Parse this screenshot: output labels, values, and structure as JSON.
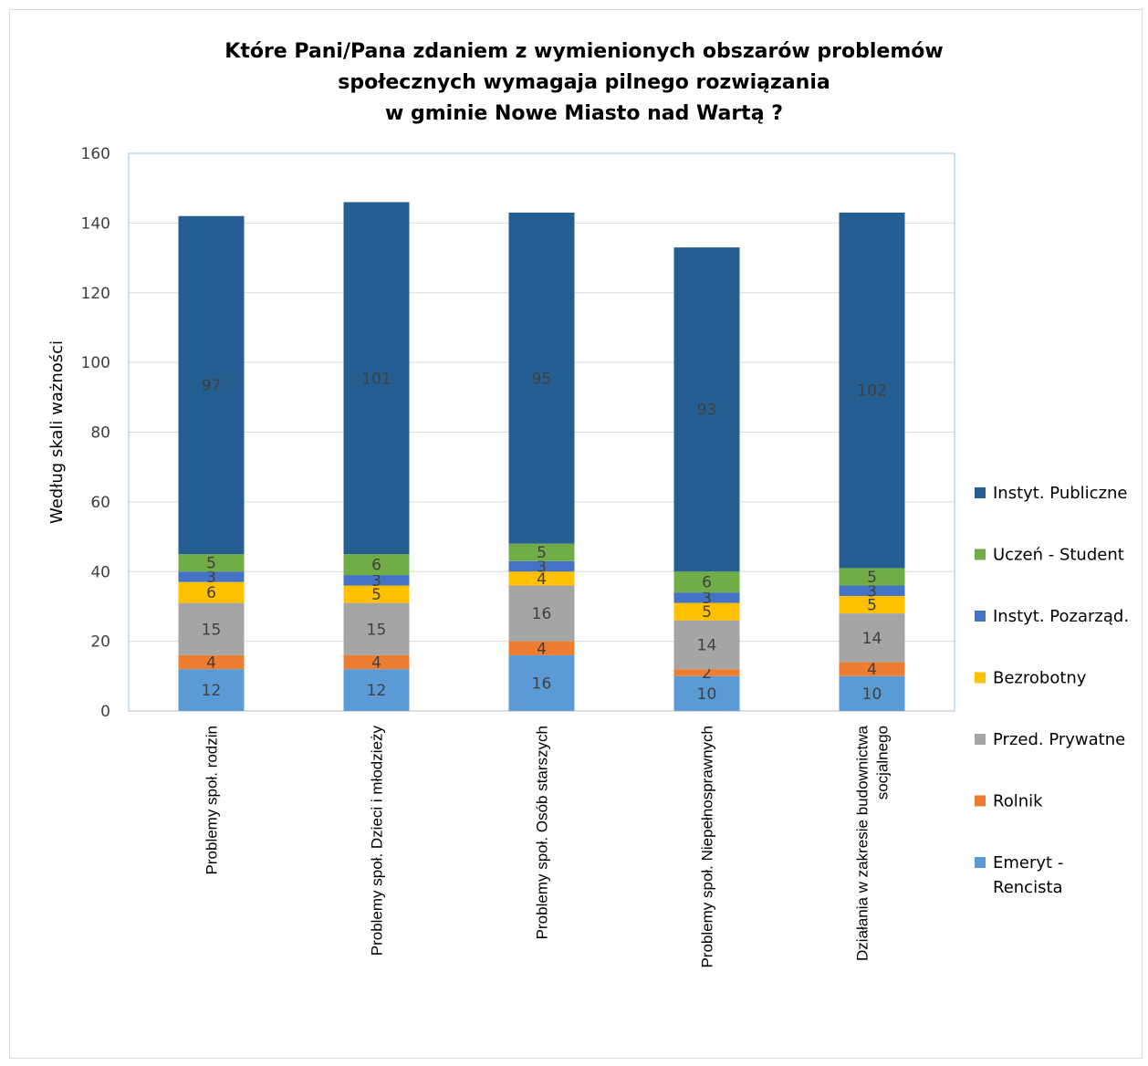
{
  "chart_data": {
    "type": "bar",
    "stacked": true,
    "title": "Które Pani/Pana zdaniem z wymienionych obszarów problemów\nspołecznych wymagaja pilnego rozwiązania\nw gminie Nowe Miasto nad Wartą ?",
    "ylabel": "Według skali ważności",
    "xlabel": "",
    "ylim": [
      0,
      160
    ],
    "yticks": [
      0,
      20,
      40,
      60,
      80,
      100,
      120,
      140,
      160
    ],
    "grid": true,
    "legend_position": "right",
    "categories": [
      [
        "Problemy społ. rodzin"
      ],
      [
        "Problemy społ. Dzieci i młodzieży"
      ],
      [
        "Problemy społ. Osób starszych"
      ],
      [
        "Problemy społ. Niepełnosprawnych"
      ],
      [
        "Działania w zakresie budownictwa",
        "socjalnego"
      ]
    ],
    "series": [
      {
        "name": "Emeryt - Rencista",
        "legend_lines": [
          "Emeryt -",
          "Rencista"
        ],
        "color": "#5b9bd5",
        "values": [
          12,
          12,
          16,
          10,
          10
        ]
      },
      {
        "name": "Rolnik",
        "legend_lines": [
          "Rolnik"
        ],
        "color": "#ed7d31",
        "values": [
          4,
          4,
          4,
          2,
          4
        ]
      },
      {
        "name": "Przed. Prywatne",
        "legend_lines": [
          "Przed. Prywatne"
        ],
        "color": "#a5a5a5",
        "values": [
          15,
          15,
          16,
          14,
          14
        ]
      },
      {
        "name": "Bezrobotny",
        "legend_lines": [
          "Bezrobotny"
        ],
        "color": "#ffc000",
        "values": [
          6,
          5,
          4,
          5,
          5
        ]
      },
      {
        "name": "Instyt. Pozarząd.",
        "legend_lines": [
          "Instyt. Pozarząd."
        ],
        "color": "#4472c4",
        "values": [
          3,
          3,
          3,
          3,
          3
        ]
      },
      {
        "name": "Uczeń - Student",
        "legend_lines": [
          "Uczeń - Student"
        ],
        "color": "#70ad47",
        "values": [
          5,
          6,
          5,
          6,
          5
        ]
      },
      {
        "name": "Instyt. Publiczne",
        "legend_lines": [
          "Instyt. Publiczne"
        ],
        "color": "#255e91",
        "values": [
          97,
          101,
          95,
          93,
          102
        ]
      }
    ]
  }
}
